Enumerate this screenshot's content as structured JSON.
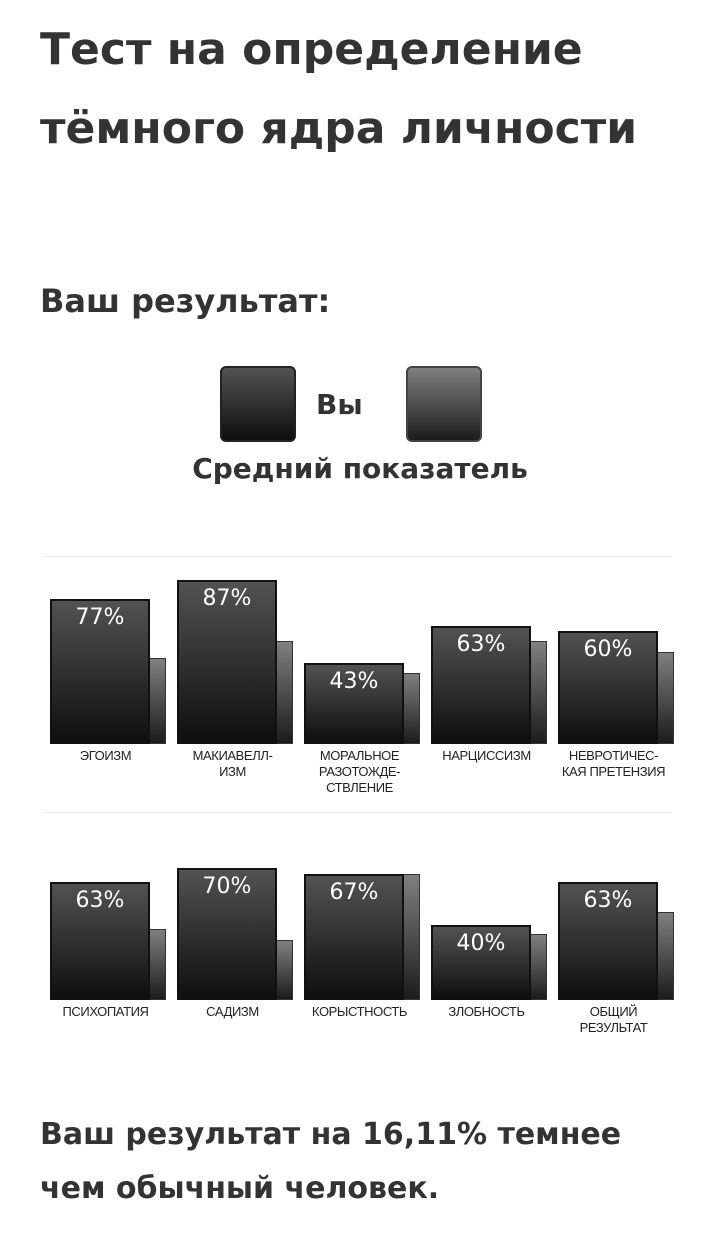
{
  "header": {
    "title": "Тест на определение тёмного ядра личности",
    "subtitle": "Ваш результат:"
  },
  "chart_data": {
    "type": "bar",
    "categories": [
      "ЭГОИЗМ",
      "МАКИАВЕЛЛ-\nИЗМ",
      "МОРАЛЬНОЕ\nРАЗОТОЖДЕ-\nСТВЛЕНИЕ",
      "НАРЦИССИЗМ",
      "НЕВРОТИЧЕС-\nКАЯ ПРЕТЕНЗИЯ",
      "ПСИХОПАТИЯ",
      "САДИЗМ",
      "КОРЫСТНОСТЬ",
      "ЗЛОБНОСТЬ",
      "ОБЩИЙ\nРЕЗУЛЬТАТ"
    ],
    "series": [
      {
        "name": "Вы",
        "color": "#3a3a3a",
        "values": [
          77,
          87,
          43,
          63,
          60,
          63,
          70,
          67,
          40,
          63
        ],
        "value_labels": [
          "77%",
          "87%",
          "43%",
          "63%",
          "60%",
          "63%",
          "70%",
          "67%",
          "40%",
          "63%"
        ]
      },
      {
        "name": "Средний показатель",
        "color": "#6e6e6e",
        "values": [
          46,
          55,
          38,
          55,
          49,
          38,
          32,
          67,
          35,
          47
        ]
      }
    ],
    "ylim": [
      0,
      100
    ]
  },
  "footer": {
    "text": "Ваш результат на 16,11% темнее чем обычный человек."
  }
}
